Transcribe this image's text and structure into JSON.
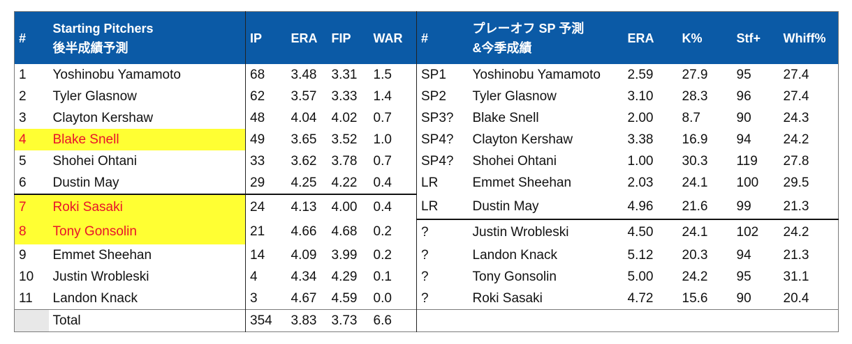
{
  "left_headers": [
    "#",
    "Starting Pitchers",
    "後半成績予測",
    "IP",
    "ERA",
    "FIP",
    "WAR"
  ],
  "right_headers": [
    "#",
    "プレーオフ SP 予測",
    "&今季成績",
    "ERA",
    "K%",
    "Stf+",
    "Whiff%"
  ],
  "highlight_color": "#ffff33",
  "highlight_text_color": "#e8132a",
  "header_bg": "#0b5aa6",
  "rows": [
    {
      "l": [
        "1",
        "Yoshinobu Yamamoto",
        "68",
        "3.48",
        "3.31",
        "1.5"
      ],
      "r": [
        "SP1",
        "Yoshinobu Yamamoto",
        "2.59",
        "27.9",
        "95",
        "27.4"
      ]
    },
    {
      "l": [
        "2",
        "Tyler Glasnow",
        "62",
        "3.57",
        "3.33",
        "1.4"
      ],
      "r": [
        "SP2",
        "Tyler Glasnow",
        "3.10",
        "28.3",
        "96",
        "27.4"
      ]
    },
    {
      "l": [
        "3",
        "Clayton Kershaw",
        "48",
        "4.04",
        "4.02",
        "0.7"
      ],
      "r": [
        "SP3?",
        "Blake Snell",
        "2.00",
        "8.7",
        "90",
        "24.3"
      ]
    },
    {
      "l": [
        "4",
        "Blake Snell",
        "49",
        "3.65",
        "3.52",
        "1.0"
      ],
      "r": [
        "SP4?",
        "Clayton Kershaw",
        "3.38",
        "16.9",
        "94",
        "24.2"
      ]
    },
    {
      "l": [
        "5",
        "Shohei Ohtani",
        "33",
        "3.62",
        "3.78",
        "0.7"
      ],
      "r": [
        "SP4?",
        "Shohei Ohtani",
        "1.00",
        "30.3",
        "119",
        "27.8"
      ]
    },
    {
      "l": [
        "6",
        "Dustin May",
        "29",
        "4.25",
        "4.22",
        "0.4"
      ],
      "r": [
        "LR",
        "Emmet Sheehan",
        "2.03",
        "24.1",
        "100",
        "29.5"
      ]
    },
    {
      "l": [
        "7",
        "Roki Sasaki",
        "24",
        "4.13",
        "4.00",
        "0.4"
      ],
      "r": [
        "LR",
        "Dustin May",
        "4.96",
        "21.6",
        "99",
        "21.3"
      ]
    },
    {
      "l": [
        "8",
        "Tony Gonsolin",
        "21",
        "4.66",
        "4.68",
        "0.2"
      ],
      "r": [
        "?",
        "Justin Wrobleski",
        "4.50",
        "24.1",
        "102",
        "24.2"
      ]
    },
    {
      "l": [
        "9",
        "Emmet Sheehan",
        "14",
        "4.09",
        "3.99",
        "0.2"
      ],
      "r": [
        "?",
        "Landon Knack",
        "5.12",
        "20.3",
        "94",
        "21.3"
      ]
    },
    {
      "l": [
        "10",
        "Justin Wrobleski",
        "4",
        "4.34",
        "4.29",
        "0.1"
      ],
      "r": [
        "?",
        "Tony Gonsolin",
        "5.00",
        "24.2",
        "95",
        "31.1"
      ]
    },
    {
      "l": [
        "11",
        "Landon Knack",
        "3",
        "4.67",
        "4.59",
        "0.0"
      ],
      "r": [
        "?",
        "Roki Sasaki",
        "4.72",
        "15.6",
        "90",
        "20.4"
      ]
    }
  ],
  "total": [
    "Total",
    "354",
    "3.83",
    "3.73",
    "6.6"
  ]
}
